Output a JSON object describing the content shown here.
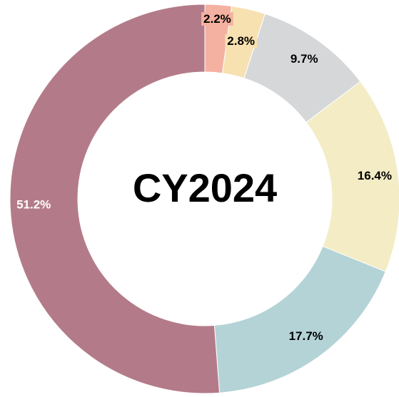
{
  "chart_data": {
    "type": "donut",
    "title": "CY2024",
    "categories": [
      null,
      null,
      null,
      null,
      null,
      null
    ],
    "values": [
      2.2,
      2.8,
      9.7,
      16.4,
      17.7,
      51.2
    ],
    "value_labels": [
      "2.2%",
      "2.8%",
      "9.7%",
      "16.4%",
      "17.7%",
      "51.2%"
    ],
    "colors": [
      "#f4b1a1",
      "#f7e1b0",
      "#d6d7d9",
      "#f3ecc5",
      "#b4d3d6",
      "#b37b89"
    ]
  }
}
